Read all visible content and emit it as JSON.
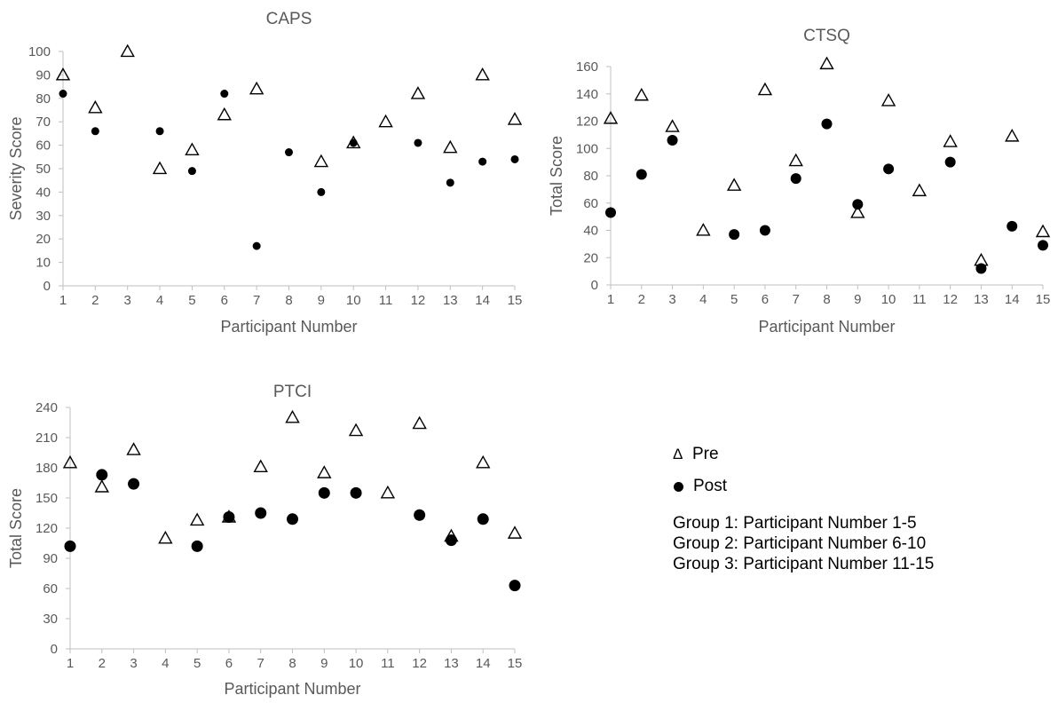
{
  "legend": {
    "pre_symbol": "Δ",
    "pre_label": "Pre",
    "post_label": "Post",
    "groups": [
      "Group 1: Participant Number 1-5",
      "Group 2: Participant Number 6-10",
      "Group 3: Participant Number 11-15"
    ]
  },
  "chart_data": [
    {
      "type": "scatter",
      "title": "CAPS",
      "xlabel": "Participant Number",
      "ylabel": "Severity Score",
      "x": [
        1,
        2,
        3,
        4,
        5,
        6,
        7,
        8,
        9,
        10,
        11,
        12,
        13,
        14,
        15
      ],
      "ylim": [
        0,
        100
      ],
      "yticks": [
        0,
        10,
        20,
        30,
        40,
        50,
        60,
        70,
        80,
        90,
        100
      ],
      "series": [
        {
          "name": "Pre",
          "marker": "triangle",
          "values": [
            90,
            76,
            100,
            50,
            58,
            73,
            84,
            null,
            53,
            61,
            70,
            82,
            59,
            90,
            71
          ]
        },
        {
          "name": "Post",
          "marker": "circle",
          "values": [
            82,
            66,
            null,
            66,
            49,
            82,
            17,
            57,
            40,
            61,
            null,
            61,
            44,
            53,
            54
          ]
        }
      ]
    },
    {
      "type": "scatter",
      "title": "CTSQ",
      "xlabel": "Participant Number",
      "ylabel": "Total Score",
      "x": [
        1,
        2,
        3,
        4,
        5,
        6,
        7,
        8,
        9,
        10,
        11,
        12,
        13,
        14,
        15
      ],
      "ylim": [
        0,
        160
      ],
      "yticks": [
        0,
        20,
        40,
        60,
        80,
        100,
        120,
        140,
        160
      ],
      "series": [
        {
          "name": "Pre",
          "marker": "triangle",
          "values": [
            122,
            139,
            116,
            40,
            73,
            143,
            91,
            162,
            53,
            135,
            69,
            105,
            18,
            109,
            39
          ]
        },
        {
          "name": "Post",
          "marker": "circle",
          "values": [
            53,
            81,
            106,
            null,
            37,
            40,
            78,
            118,
            59,
            85,
            null,
            90,
            12,
            43,
            29
          ]
        }
      ]
    },
    {
      "type": "scatter",
      "title": "PTCI",
      "xlabel": "Participant Number",
      "ylabel": "Total Score",
      "x": [
        1,
        2,
        3,
        4,
        5,
        6,
        7,
        8,
        9,
        10,
        11,
        12,
        13,
        14,
        15
      ],
      "ylim": [
        0,
        240
      ],
      "yticks": [
        0,
        30,
        60,
        90,
        120,
        150,
        180,
        210,
        240
      ],
      "series": [
        {
          "name": "Pre",
          "marker": "triangle",
          "values": [
            185,
            161,
            198,
            110,
            128,
            131,
            181,
            230,
            175,
            217,
            155,
            224,
            112,
            185,
            115
          ]
        },
        {
          "name": "Post",
          "marker": "circle",
          "values": [
            102,
            173,
            164,
            null,
            102,
            131,
            135,
            129,
            155,
            155,
            null,
            133,
            108,
            129,
            63
          ]
        }
      ]
    }
  ]
}
